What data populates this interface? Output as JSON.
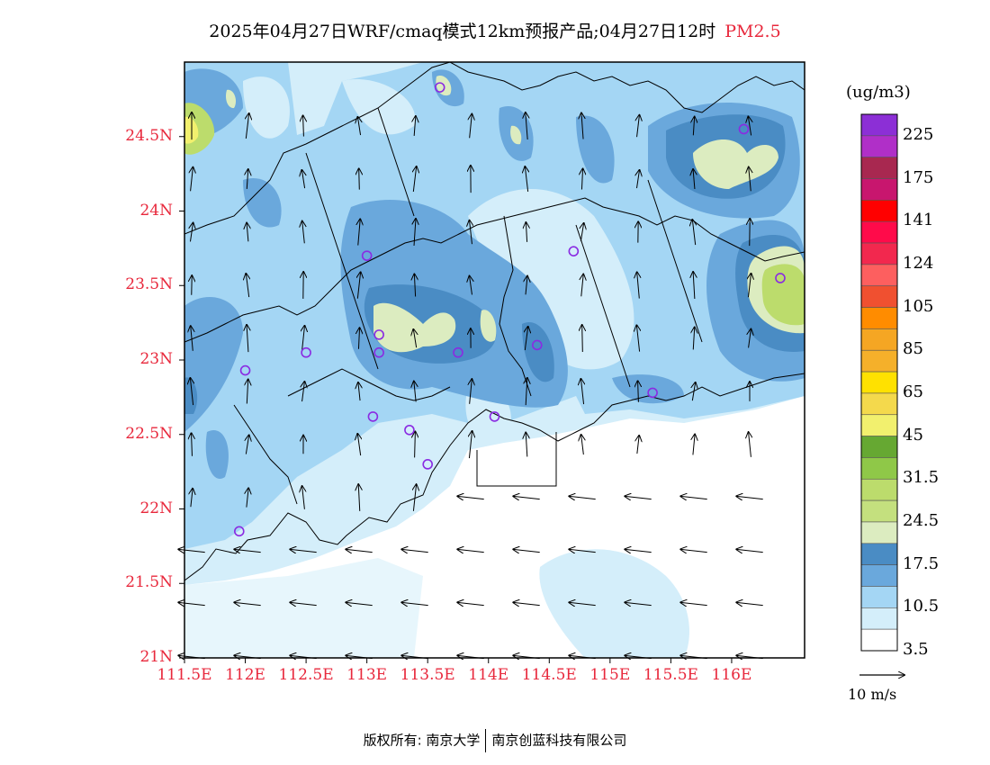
{
  "title": {
    "main": "2025年04月27日WRF/cmaq模式12km预报产品;04月27日12时",
    "variable": "PM2.5"
  },
  "axes": {
    "lat_ticks": [
      "24.5N",
      "24N",
      "23.5N",
      "23N",
      "22.5N",
      "22N",
      "21.5N",
      "21N"
    ],
    "lat_values": [
      24.5,
      24,
      23.5,
      23,
      22.5,
      22,
      21.5,
      21
    ],
    "lon_ticks": [
      "111.5E",
      "112E",
      "112.5E",
      "113E",
      "113.5E",
      "114E",
      "114.5E",
      "115E",
      "115.5E",
      "116E"
    ],
    "lon_values": [
      111.5,
      112,
      112.5,
      113,
      113.5,
      114,
      114.5,
      115,
      115.5,
      116
    ],
    "lat_range": [
      21,
      25
    ],
    "lon_range": [
      111.5,
      116.6
    ]
  },
  "colorbar": {
    "unit": "(ug/m3)",
    "levels": [
      "225",
      "175",
      "141",
      "124",
      "105",
      "85",
      "65",
      "45",
      "31.5",
      "24.5",
      "17.5",
      "10.5",
      "3.5"
    ],
    "colors": [
      "#8c2fd6",
      "#b02fc8",
      "#a82850",
      "#c8166e",
      "#ff0000",
      "#ff0b4a",
      "#f2284e",
      "#fd5f5f",
      "#f05030",
      "#ff8c00",
      "#f5a623",
      "#f5b02a",
      "#ffe100",
      "#f4d94c",
      "#f2f06e",
      "#66a832",
      "#8fc848",
      "#bcdc6c",
      "#c4e07e",
      "#dcecc0",
      "#4a8cc4",
      "#6aa8dc",
      "#a4d6f4",
      "#d4eefa",
      "#ffffff"
    ]
  },
  "vector_legend": {
    "label": "10 m/s"
  },
  "footer": {
    "left": "版权所有: 南京大学",
    "right": "南京创蓝科技有限公司"
  },
  "stations": [
    {
      "lon": 113.6,
      "lat": 24.83
    },
    {
      "lon": 116.1,
      "lat": 24.55
    },
    {
      "lon": 113.0,
      "lat": 23.7
    },
    {
      "lon": 114.7,
      "lat": 23.73
    },
    {
      "lon": 116.4,
      "lat": 23.55
    },
    {
      "lon": 113.1,
      "lat": 23.17
    },
    {
      "lon": 113.1,
      "lat": 23.05
    },
    {
      "lon": 112.5,
      "lat": 23.05
    },
    {
      "lon": 113.75,
      "lat": 23.05
    },
    {
      "lon": 114.4,
      "lat": 23.1
    },
    {
      "lon": 112.0,
      "lat": 22.93
    },
    {
      "lon": 113.05,
      "lat": 22.62
    },
    {
      "lon": 113.35,
      "lat": 22.53
    },
    {
      "lon": 114.05,
      "lat": 22.62
    },
    {
      "lon": 115.35,
      "lat": 22.78
    },
    {
      "lon": 113.5,
      "lat": 22.3
    },
    {
      "lon": 111.95,
      "lat": 21.85
    }
  ],
  "wind": {
    "land_u": 0.0,
    "land_v": 6.0,
    "sea_u": -7.0,
    "sea_v": 0.8
  }
}
